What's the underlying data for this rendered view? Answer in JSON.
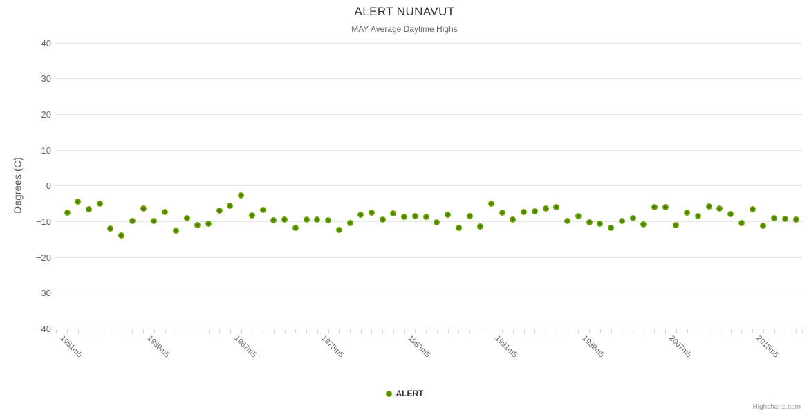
{
  "title": "ALERT NUNAVUT",
  "subtitle": "MAY Average Daytime Highs",
  "legend": {
    "label": "ALERT"
  },
  "credits": "Highcharts.com",
  "y_axis": {
    "title": "Degrees (C)",
    "tick_values": [
      40,
      30,
      20,
      10,
      0,
      -10,
      -20,
      -30,
      -40
    ],
    "tick_labels": [
      "40",
      "30",
      "20",
      "10",
      "0",
      "−10",
      "−20",
      "−30",
      "−40"
    ]
  },
  "x_axis": {
    "label_every": 8
  },
  "colors": {
    "marker_outer": "#7db30e",
    "marker_mid": "#5d9600",
    "marker_inner": "#346e00",
    "grid": "#e6e6e6",
    "axis": "#ccd6eb",
    "label": "#666666",
    "title": "#333333"
  },
  "chart_data": {
    "type": "scatter",
    "title": "ALERT NUNAVUT",
    "subtitle": "MAY Average Daytime Highs",
    "xlabel": "",
    "ylabel": "Degrees (C)",
    "ylim": [
      -40,
      40
    ],
    "grid": true,
    "legend_position": "bottom",
    "categories": [
      "1951m5",
      "1952m5",
      "1953m5",
      "1954m5",
      "1955m5",
      "1956m5",
      "1957m5",
      "1958m5",
      "1959m5",
      "1960m5",
      "1961m5",
      "1962m5",
      "1963m5",
      "1964m5",
      "1965m5",
      "1966m5",
      "1967m5",
      "1968m5",
      "1969m5",
      "1970m5",
      "1971m5",
      "1972m5",
      "1973m5",
      "1974m5",
      "1975m5",
      "1976m5",
      "1977m5",
      "1978m5",
      "1979m5",
      "1980m5",
      "1981m5",
      "1982m5",
      "1983m5",
      "1984m5",
      "1985m5",
      "1986m5",
      "1987m5",
      "1988m5",
      "1989m5",
      "1990m5",
      "1991m5",
      "1992m5",
      "1993m5",
      "1994m5",
      "1995m5",
      "1996m5",
      "1997m5",
      "1998m5",
      "1999m5",
      "2000m5",
      "2001m5",
      "2002m5",
      "2003m5",
      "2004m5",
      "2005m5",
      "2006m5",
      "2007m5",
      "2008m5",
      "2009m5",
      "2010m5",
      "2011m5",
      "2012m5",
      "2013m5",
      "2014m5",
      "2015m5",
      "2016m5",
      "2017m5",
      "2018m5"
    ],
    "series": [
      {
        "name": "ALERT",
        "values": [
          -7.6,
          -4.5,
          -6.7,
          -5.1,
          -12.0,
          -14.0,
          -9.9,
          -6.5,
          -9.9,
          -7.4,
          -12.6,
          -9.1,
          -11.1,
          -10.6,
          -7.0,
          -5.6,
          -2.7,
          -8.4,
          -6.8,
          -9.8,
          -9.5,
          -11.8,
          -9.6,
          -9.5,
          -9.8,
          -12.4,
          -10.5,
          -8.1,
          -7.5,
          -9.6,
          -7.7,
          -8.8,
          -8.6,
          -8.7,
          -10.3,
          -8.1,
          -11.8,
          -8.5,
          -11.4,
          -5.0,
          -7.6,
          -9.6,
          -7.4,
          -7.2,
          -6.4,
          -6.0,
          -9.9,
          -8.6,
          -10.3,
          -10.7,
          -11.9,
          -10.0,
          -9.1,
          -10.8,
          -6.1,
          -6.0,
          -11.1,
          -7.6,
          -8.5,
          -5.9,
          -6.5,
          -8.0,
          -10.4,
          -6.7,
          -11.3,
          -9.2,
          -9.4,
          -9.6
        ]
      }
    ]
  }
}
